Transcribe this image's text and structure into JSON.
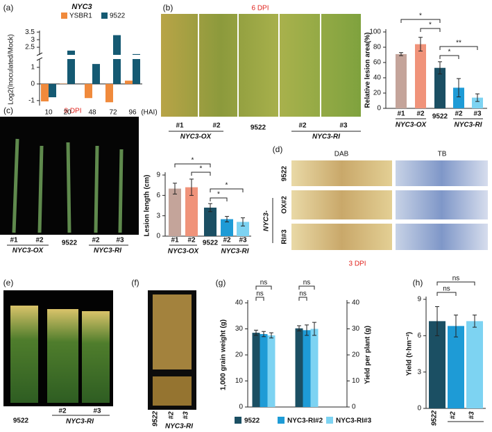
{
  "panel_labels": [
    "(a)",
    "(b)",
    "(c)",
    "(d)",
    "(e)",
    "(f)",
    "(g)",
    "(h)"
  ],
  "photos": {
    "b": {
      "title": "6 DPI",
      "labels": [
        "#1",
        "#2",
        "9522",
        "#2",
        "#3"
      ],
      "groups": [
        "NYC3-OX",
        "NYC3-RI"
      ]
    },
    "c": {
      "title": "8 DPI",
      "labels": [
        "#1",
        "#2",
        "9522",
        "#2",
        "#3"
      ],
      "groups": [
        "NYC3-OX",
        "NYC3-RI"
      ]
    },
    "d": {
      "columns": [
        "DAB",
        "TB"
      ],
      "rows": [
        "9522",
        "OX#2",
        "RI#3"
      ],
      "row_group": "NYC3-",
      "footer": "3 DPI"
    },
    "e": {
      "labels": [
        "9522",
        "#2",
        "#3"
      ],
      "group": "NYC3-RI"
    },
    "f": {
      "labels": [
        "9522",
        "#2",
        "#3"
      ],
      "group": "NYC3-RI"
    }
  },
  "chart_data": [
    {
      "type": "broken-bar",
      "title": "NYC3",
      "y_label": "Log2(Inoculated/Mock)",
      "x_label": "(HAI)",
      "categories": [
        "10",
        "20",
        "48",
        "72",
        "96"
      ],
      "series": [
        {
          "name": "YSBR1",
          "color": "#f08a3c",
          "values": [
            -1.05,
            0.02,
            -0.85,
            -1.1,
            0.2
          ]
        },
        {
          "name": "9522",
          "color": "#155a73",
          "values": [
            -0.8,
            2.28,
            1.2,
            3.3,
            2.05
          ]
        }
      ],
      "ylim": [
        -1.3,
        3.6
      ],
      "yticks": [
        -1,
        0,
        1,
        2.5,
        3,
        3.5
      ],
      "axis_break": [
        1.5,
        2.0
      ]
    },
    {
      "type": "bar",
      "y_label": "Relative lesion area(%)",
      "categories": [
        "#1",
        "#2",
        "9522",
        "#2",
        "#3"
      ],
      "groups": [
        "NYC3-OX",
        "NYC3-RI"
      ],
      "values": [
        71,
        84,
        53,
        27,
        14
      ],
      "errors": [
        2,
        9,
        8,
        12,
        5
      ],
      "colors": [
        "#c4a49a",
        "#f0937a",
        "#1b4f63",
        "#1e9bd6",
        "#7dd3f2"
      ],
      "ylim": [
        0,
        100
      ],
      "yticks": [
        0,
        20,
        40,
        60,
        80,
        100
      ],
      "significance": [
        "*",
        "*",
        "*",
        "**"
      ]
    },
    {
      "type": "bar",
      "y_label": "Lesion length (cm)",
      "categories": [
        "#1",
        "#2",
        "9522",
        "#2",
        "#3"
      ],
      "groups": [
        "NYC3-OX",
        "NYC3-RI"
      ],
      "values": [
        7.0,
        7.2,
        4.2,
        2.5,
        2.1
      ],
      "errors": [
        0.8,
        1.2,
        0.6,
        0.4,
        0.6
      ],
      "colors": [
        "#c4a49a",
        "#f0937a",
        "#1b4f63",
        "#1e9bd6",
        "#7dd3f2"
      ],
      "ylim": [
        0,
        9
      ],
      "yticks": [
        0,
        3,
        6,
        9
      ],
      "significance": [
        "*",
        "*",
        "*",
        "*"
      ]
    },
    {
      "type": "grouped-bar",
      "y_label": "1,000 grain weight (g)",
      "y2_label": "Yield per plant (g)",
      "series": [
        {
          "name": "9522",
          "color": "#1b4f63",
          "values": [
            28.5,
            30.2
          ],
          "errors": [
            1,
            1
          ]
        },
        {
          "name": "NYC3-RI#2",
          "color": "#1e9bd6",
          "values": [
            28,
            29.5
          ],
          "errors": [
            1,
            2
          ]
        },
        {
          "name": "NYC3-RI#3",
          "color": "#7dd3f2",
          "values": [
            27.5,
            30
          ],
          "errors": [
            1,
            2.5
          ]
        }
      ],
      "ylim": [
        0,
        40
      ],
      "yticks": [
        0,
        10,
        20,
        30,
        40
      ],
      "y2lim": [
        0,
        40
      ],
      "y2ticks": [
        0,
        10,
        20,
        30,
        40
      ],
      "significance": [
        "ns",
        "ns",
        "ns",
        "ns"
      ]
    },
    {
      "type": "bar",
      "y_label": "Yield (t·hm⁻²)",
      "categories": [
        "9522",
        "#2",
        "#3"
      ],
      "values": [
        7.2,
        6.8,
        7.2
      ],
      "errors": [
        1.2,
        0.9,
        0.5
      ],
      "colors": [
        "#1b4f63",
        "#1e9bd6",
        "#7dd3f2"
      ],
      "ylim": [
        0,
        9
      ],
      "yticks": [
        0,
        3,
        6,
        9
      ],
      "significance": [
        "ns",
        "ns"
      ]
    }
  ]
}
